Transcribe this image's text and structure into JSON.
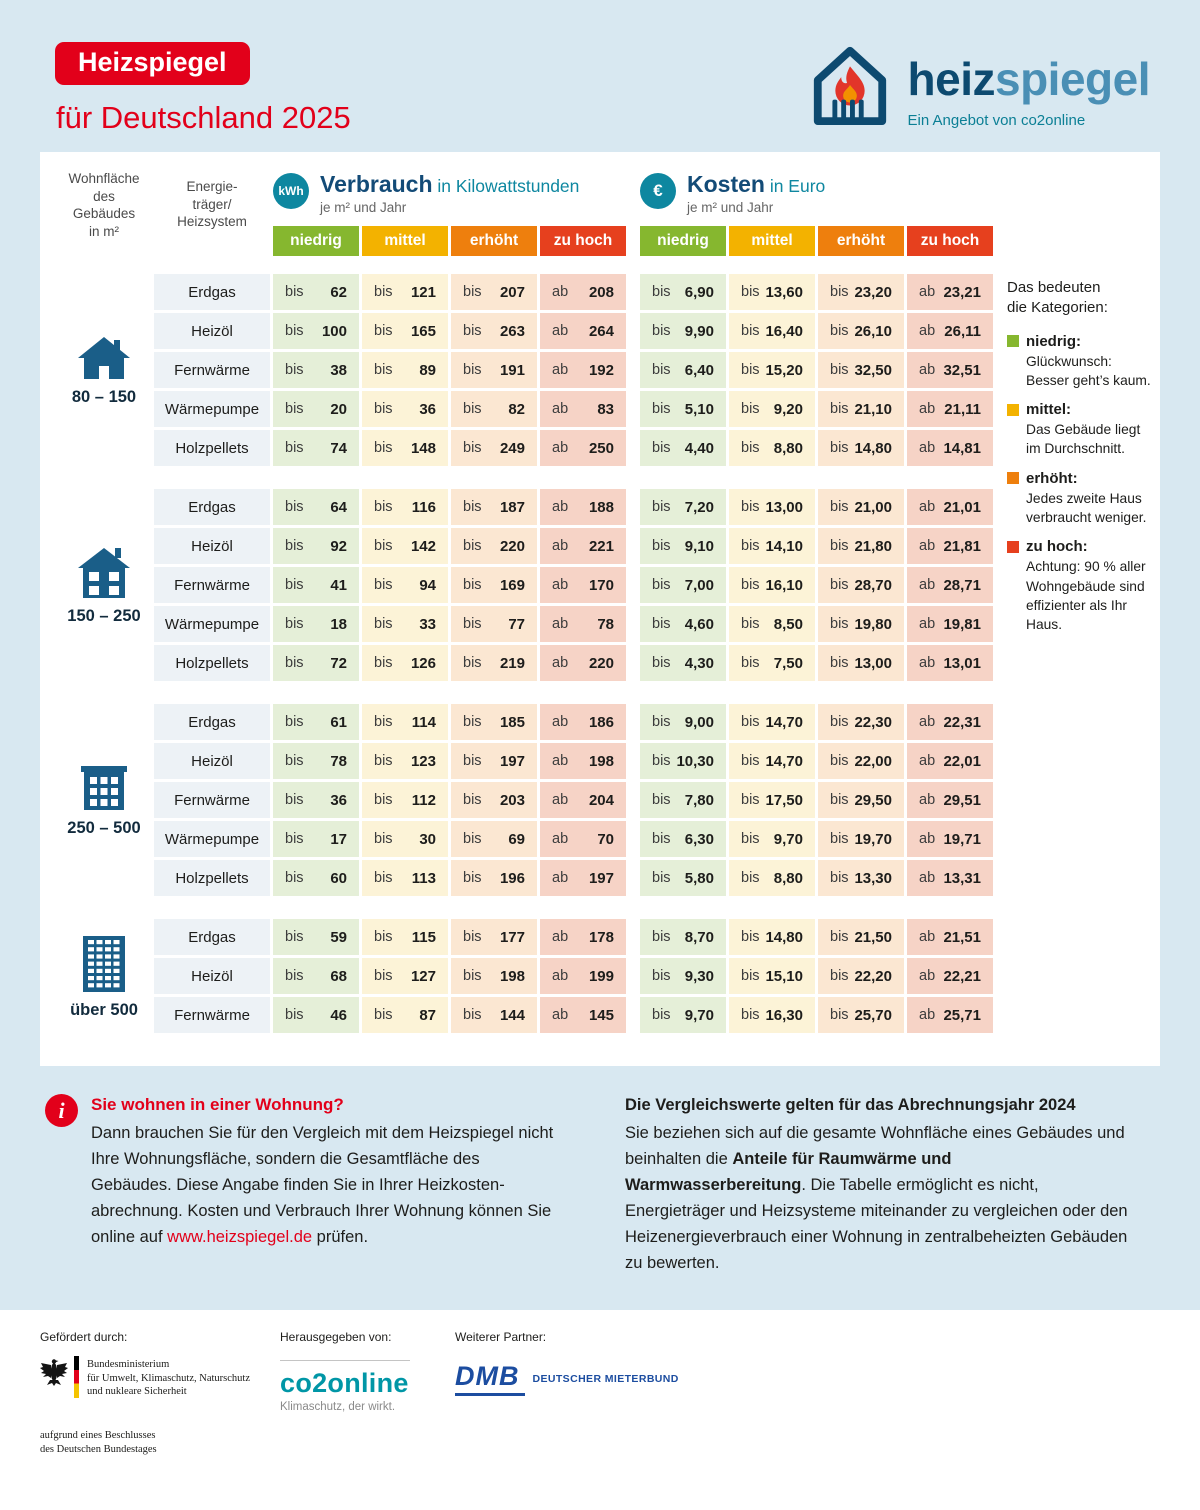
{
  "colors": {
    "background": "#d8e8f1",
    "accent_red": "#e2001a",
    "dark_blue": "#134b77",
    "teal": "#0e87a0",
    "building_blue": "#1a5e88"
  },
  "header": {
    "badge": "Heizspiegel",
    "title": "für Deutschland 2025",
    "logo": {
      "heiz": "heiz",
      "spiegel": "spiegel",
      "tagline": "Ein Angebot von co2online"
    }
  },
  "table": {
    "area_header": "Wohnfläche\ndes\nGebäudes\nin m²",
    "carrier_header": "Energie-\nträger/\nHeizsystem",
    "verbrauch": {
      "badge": "kWh",
      "title": "Verbrauch",
      "suffix": " in Kilowattstunden",
      "per": "je m² und Jahr"
    },
    "kosten": {
      "badge": "€",
      "title": "Kosten",
      "suffix": " in Euro",
      "per": "je m² und Jahr"
    },
    "categories": [
      {
        "label": "niedrig",
        "color": "#86b72f",
        "tint": "#e5efd8"
      },
      {
        "label": "mittel",
        "color": "#f3b200",
        "tint": "#fcf3d7"
      },
      {
        "label": "erhöht",
        "color": "#ee7f0d",
        "tint": "#fbe7d2"
      },
      {
        "label": "zu hoch",
        "color": "#e6401e",
        "tint": "#f6d3c6"
      }
    ],
    "groups": [
      {
        "range": "80 – 150",
        "icon": "house-small",
        "rows": [
          {
            "label": "Erdgas",
            "verbrauch": [
              [
                "bis",
                "62"
              ],
              [
                "bis",
                "121"
              ],
              [
                "bis",
                "207"
              ],
              [
                "ab",
                "208"
              ]
            ],
            "kosten": [
              [
                "bis",
                "6,90"
              ],
              [
                "bis",
                "13,60"
              ],
              [
                "bis",
                "23,20"
              ],
              [
                "ab",
                "23,21"
              ]
            ]
          },
          {
            "label": "Heizöl",
            "verbrauch": [
              [
                "bis",
                "100"
              ],
              [
                "bis",
                "165"
              ],
              [
                "bis",
                "263"
              ],
              [
                "ab",
                "264"
              ]
            ],
            "kosten": [
              [
                "bis",
                "9,90"
              ],
              [
                "bis",
                "16,40"
              ],
              [
                "bis",
                "26,10"
              ],
              [
                "ab",
                "26,11"
              ]
            ]
          },
          {
            "label": "Fernwärme",
            "verbrauch": [
              [
                "bis",
                "38"
              ],
              [
                "bis",
                "89"
              ],
              [
                "bis",
                "191"
              ],
              [
                "ab",
                "192"
              ]
            ],
            "kosten": [
              [
                "bis",
                "6,40"
              ],
              [
                "bis",
                "15,20"
              ],
              [
                "bis",
                "32,50"
              ],
              [
                "ab",
                "32,51"
              ]
            ]
          },
          {
            "label": "Wärmepumpe",
            "verbrauch": [
              [
                "bis",
                "20"
              ],
              [
                "bis",
                "36"
              ],
              [
                "bis",
                "82"
              ],
              [
                "ab",
                "83"
              ]
            ],
            "kosten": [
              [
                "bis",
                "5,10"
              ],
              [
                "bis",
                "9,20"
              ],
              [
                "bis",
                "21,10"
              ],
              [
                "ab",
                "21,11"
              ]
            ]
          },
          {
            "label": "Holzpellets",
            "verbrauch": [
              [
                "bis",
                "74"
              ],
              [
                "bis",
                "148"
              ],
              [
                "bis",
                "249"
              ],
              [
                "ab",
                "250"
              ]
            ],
            "kosten": [
              [
                "bis",
                "4,40"
              ],
              [
                "bis",
                "8,80"
              ],
              [
                "bis",
                "14,80"
              ],
              [
                "ab",
                "14,81"
              ]
            ]
          }
        ]
      },
      {
        "range": "150 – 250",
        "icon": "house-medium",
        "rows": [
          {
            "label": "Erdgas",
            "verbrauch": [
              [
                "bis",
                "64"
              ],
              [
                "bis",
                "116"
              ],
              [
                "bis",
                "187"
              ],
              [
                "ab",
                "188"
              ]
            ],
            "kosten": [
              [
                "bis",
                "7,20"
              ],
              [
                "bis",
                "13,00"
              ],
              [
                "bis",
                "21,00"
              ],
              [
                "ab",
                "21,01"
              ]
            ]
          },
          {
            "label": "Heizöl",
            "verbrauch": [
              [
                "bis",
                "92"
              ],
              [
                "bis",
                "142"
              ],
              [
                "bis",
                "220"
              ],
              [
                "ab",
                "221"
              ]
            ],
            "kosten": [
              [
                "bis",
                "9,10"
              ],
              [
                "bis",
                "14,10"
              ],
              [
                "bis",
                "21,80"
              ],
              [
                "ab",
                "21,81"
              ]
            ]
          },
          {
            "label": "Fernwärme",
            "verbrauch": [
              [
                "bis",
                "41"
              ],
              [
                "bis",
                "94"
              ],
              [
                "bis",
                "169"
              ],
              [
                "ab",
                "170"
              ]
            ],
            "kosten": [
              [
                "bis",
                "7,00"
              ],
              [
                "bis",
                "16,10"
              ],
              [
                "bis",
                "28,70"
              ],
              [
                "ab",
                "28,71"
              ]
            ]
          },
          {
            "label": "Wärmepumpe",
            "verbrauch": [
              [
                "bis",
                "18"
              ],
              [
                "bis",
                "33"
              ],
              [
                "bis",
                "77"
              ],
              [
                "ab",
                "78"
              ]
            ],
            "kosten": [
              [
                "bis",
                "4,60"
              ],
              [
                "bis",
                "8,50"
              ],
              [
                "bis",
                "19,80"
              ],
              [
                "ab",
                "19,81"
              ]
            ]
          },
          {
            "label": "Holzpellets",
            "verbrauch": [
              [
                "bis",
                "72"
              ],
              [
                "bis",
                "126"
              ],
              [
                "bis",
                "219"
              ],
              [
                "ab",
                "220"
              ]
            ],
            "kosten": [
              [
                "bis",
                "4,30"
              ],
              [
                "bis",
                "7,50"
              ],
              [
                "bis",
                "13,00"
              ],
              [
                "ab",
                "13,01"
              ]
            ]
          }
        ]
      },
      {
        "range": "250 – 500",
        "icon": "apartment",
        "rows": [
          {
            "label": "Erdgas",
            "verbrauch": [
              [
                "bis",
                "61"
              ],
              [
                "bis",
                "114"
              ],
              [
                "bis",
                "185"
              ],
              [
                "ab",
                "186"
              ]
            ],
            "kosten": [
              [
                "bis",
                "9,00"
              ],
              [
                "bis",
                "14,70"
              ],
              [
                "bis",
                "22,30"
              ],
              [
                "ab",
                "22,31"
              ]
            ]
          },
          {
            "label": "Heizöl",
            "verbrauch": [
              [
                "bis",
                "78"
              ],
              [
                "bis",
                "123"
              ],
              [
                "bis",
                "197"
              ],
              [
                "ab",
                "198"
              ]
            ],
            "kosten": [
              [
                "bis",
                "10,30"
              ],
              [
                "bis",
                "14,70"
              ],
              [
                "bis",
                "22,00"
              ],
              [
                "ab",
                "22,01"
              ]
            ]
          },
          {
            "label": "Fernwärme",
            "verbrauch": [
              [
                "bis",
                "36"
              ],
              [
                "bis",
                "112"
              ],
              [
                "bis",
                "203"
              ],
              [
                "ab",
                "204"
              ]
            ],
            "kosten": [
              [
                "bis",
                "7,80"
              ],
              [
                "bis",
                "17,50"
              ],
              [
                "bis",
                "29,50"
              ],
              [
                "ab",
                "29,51"
              ]
            ]
          },
          {
            "label": "Wärmepumpe",
            "verbrauch": [
              [
                "bis",
                "17"
              ],
              [
                "bis",
                "30"
              ],
              [
                "bis",
                "69"
              ],
              [
                "ab",
                "70"
              ]
            ],
            "kosten": [
              [
                "bis",
                "6,30"
              ],
              [
                "bis",
                "9,70"
              ],
              [
                "bis",
                "19,70"
              ],
              [
                "ab",
                "19,71"
              ]
            ]
          },
          {
            "label": "Holzpellets",
            "verbrauch": [
              [
                "bis",
                "60"
              ],
              [
                "bis",
                "113"
              ],
              [
                "bis",
                "196"
              ],
              [
                "ab",
                "197"
              ]
            ],
            "kosten": [
              [
                "bis",
                "5,80"
              ],
              [
                "bis",
                "8,80"
              ],
              [
                "bis",
                "13,30"
              ],
              [
                "ab",
                "13,31"
              ]
            ]
          }
        ]
      },
      {
        "range": "über 500",
        "icon": "tower",
        "rows": [
          {
            "label": "Erdgas",
            "verbrauch": [
              [
                "bis",
                "59"
              ],
              [
                "bis",
                "115"
              ],
              [
                "bis",
                "177"
              ],
              [
                "ab",
                "178"
              ]
            ],
            "kosten": [
              [
                "bis",
                "8,70"
              ],
              [
                "bis",
                "14,80"
              ],
              [
                "bis",
                "21,50"
              ],
              [
                "ab",
                "21,51"
              ]
            ]
          },
          {
            "label": "Heizöl",
            "verbrauch": [
              [
                "bis",
                "68"
              ],
              [
                "bis",
                "127"
              ],
              [
                "bis",
                "198"
              ],
              [
                "ab",
                "199"
              ]
            ],
            "kosten": [
              [
                "bis",
                "9,30"
              ],
              [
                "bis",
                "15,10"
              ],
              [
                "bis",
                "22,20"
              ],
              [
                "ab",
                "22,21"
              ]
            ]
          },
          {
            "label": "Fernwärme",
            "verbrauch": [
              [
                "bis",
                "46"
              ],
              [
                "bis",
                "87"
              ],
              [
                "bis",
                "144"
              ],
              [
                "ab",
                "145"
              ]
            ],
            "kosten": [
              [
                "bis",
                "9,70"
              ],
              [
                "bis",
                "16,30"
              ],
              [
                "bis",
                "25,70"
              ],
              [
                "ab",
                "25,71"
              ]
            ]
          }
        ]
      }
    ]
  },
  "legend": {
    "title": "Das bedeuten\ndie Kategorien:",
    "items": [
      {
        "label": "niedrig:",
        "color": "#86b72f",
        "text": "Glückwunsch:\nBesser geht’s kaum."
      },
      {
        "label": "mittel:",
        "color": "#f3b200",
        "text": "Das Gebäude liegt\nim Durchschnitt."
      },
      {
        "label": "erhöht:",
        "color": "#ee7f0d",
        "text": "Jedes zweite Haus\nverbraucht weniger."
      },
      {
        "label": "zu hoch:",
        "color": "#e6401e",
        "text": "Achtung: 90 % aller\nWohngebäude sind\neffizienter als Ihr\nHaus."
      }
    ]
  },
  "info": {
    "left": {
      "heading": "Sie wohnen in einer Wohnung?",
      "body": "Dann brauchen Sie für den Vergleich mit dem Heizspiegel nicht Ihre Wohnungsfläche, sondern die Gesamtfläche des Gebäudes. Diese Angabe finden Sie in Ihrer Heizkosten­abrechnung. Kosten und Verbrauch Ihrer Wohnung können Sie online auf ",
      "link": "www.heizspiegel.de",
      "after_link": " prüfen."
    },
    "right": {
      "heading": "Die Vergleichswerte gelten für das Abrechnungsjahr 2024",
      "body1": "Sie beziehen sich auf die gesamte Wohnfläche eines Gebäudes und beinhalten die ",
      "bold": "Anteile für Raumwärme und Warmwasserbereitung",
      "body2": ". Die Tabelle ermöglicht es nicht, Energieträger und Heizsysteme miteinander zu vergleichen oder den Heizenergieverbrauch einer Wohnung in zentralbeheizten Gebäuden zu bewerten."
    }
  },
  "footer": {
    "funded_label": "Gefördert durch:",
    "ministry": "Bundesministerium\nfür Umwelt, Klimaschutz, Naturschutz\nund nukleare Sicherheit",
    "bundestag_note": "aufgrund eines Beschlusses\ndes Deutschen Bundestages",
    "publisher_label": "Herausgegeben von:",
    "co2online": "co2online",
    "co2online_claim": "Klimaschutz, der wirkt.",
    "partner_label": "Weiterer Partner:",
    "dmb": "DMB",
    "dmb_name": "DEUTSCHER MIETERBUND"
  }
}
